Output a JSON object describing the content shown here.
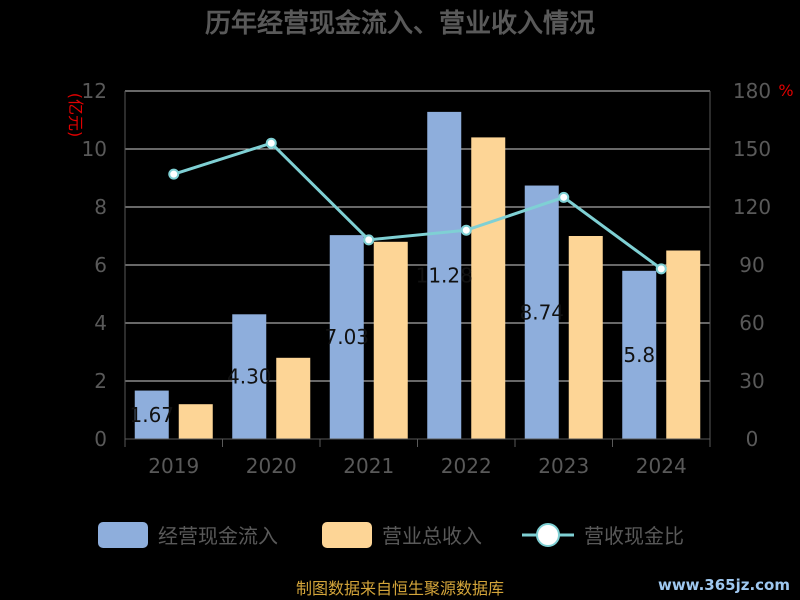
{
  "chart_data": {
    "type": "bar",
    "title": "历年经营现金流入、营业收入情况",
    "categories": [
      "2019",
      "2020",
      "2021",
      "2022",
      "2023",
      "2024"
    ],
    "series": [
      {
        "name": "经营现金流入",
        "kind": "bar",
        "axis": "left",
        "color": "#8eaedc",
        "values": [
          1.67,
          4.3,
          7.03,
          11.28,
          8.74,
          5.8
        ],
        "labels": [
          "1.67",
          "4.30",
          "7.03",
          "11.28",
          "8.74",
          "5.8"
        ]
      },
      {
        "name": "营业总收入",
        "kind": "bar",
        "axis": "left",
        "color": "#fdd596",
        "values": [
          1.2,
          2.8,
          6.8,
          10.4,
          7.0,
          6.5
        ]
      },
      {
        "name": "营收现金比",
        "kind": "line",
        "axis": "right",
        "color": "#7fd0d4",
        "values": [
          137,
          153,
          103,
          108,
          125,
          88
        ]
      }
    ],
    "y_left": {
      "label": "亿元",
      "min": 0,
      "max": 12,
      "ticks": [
        0,
        2,
        4,
        6,
        8,
        10,
        12
      ]
    },
    "y_right": {
      "label": "%",
      "min": 0,
      "max": 180,
      "ticks": [
        0,
        30,
        60,
        90,
        120,
        150,
        180
      ]
    },
    "grid": true,
    "legend_position": "bottom"
  },
  "footer": "制图数据来自恒生聚源数据库",
  "watermark": "www.365jz.com"
}
